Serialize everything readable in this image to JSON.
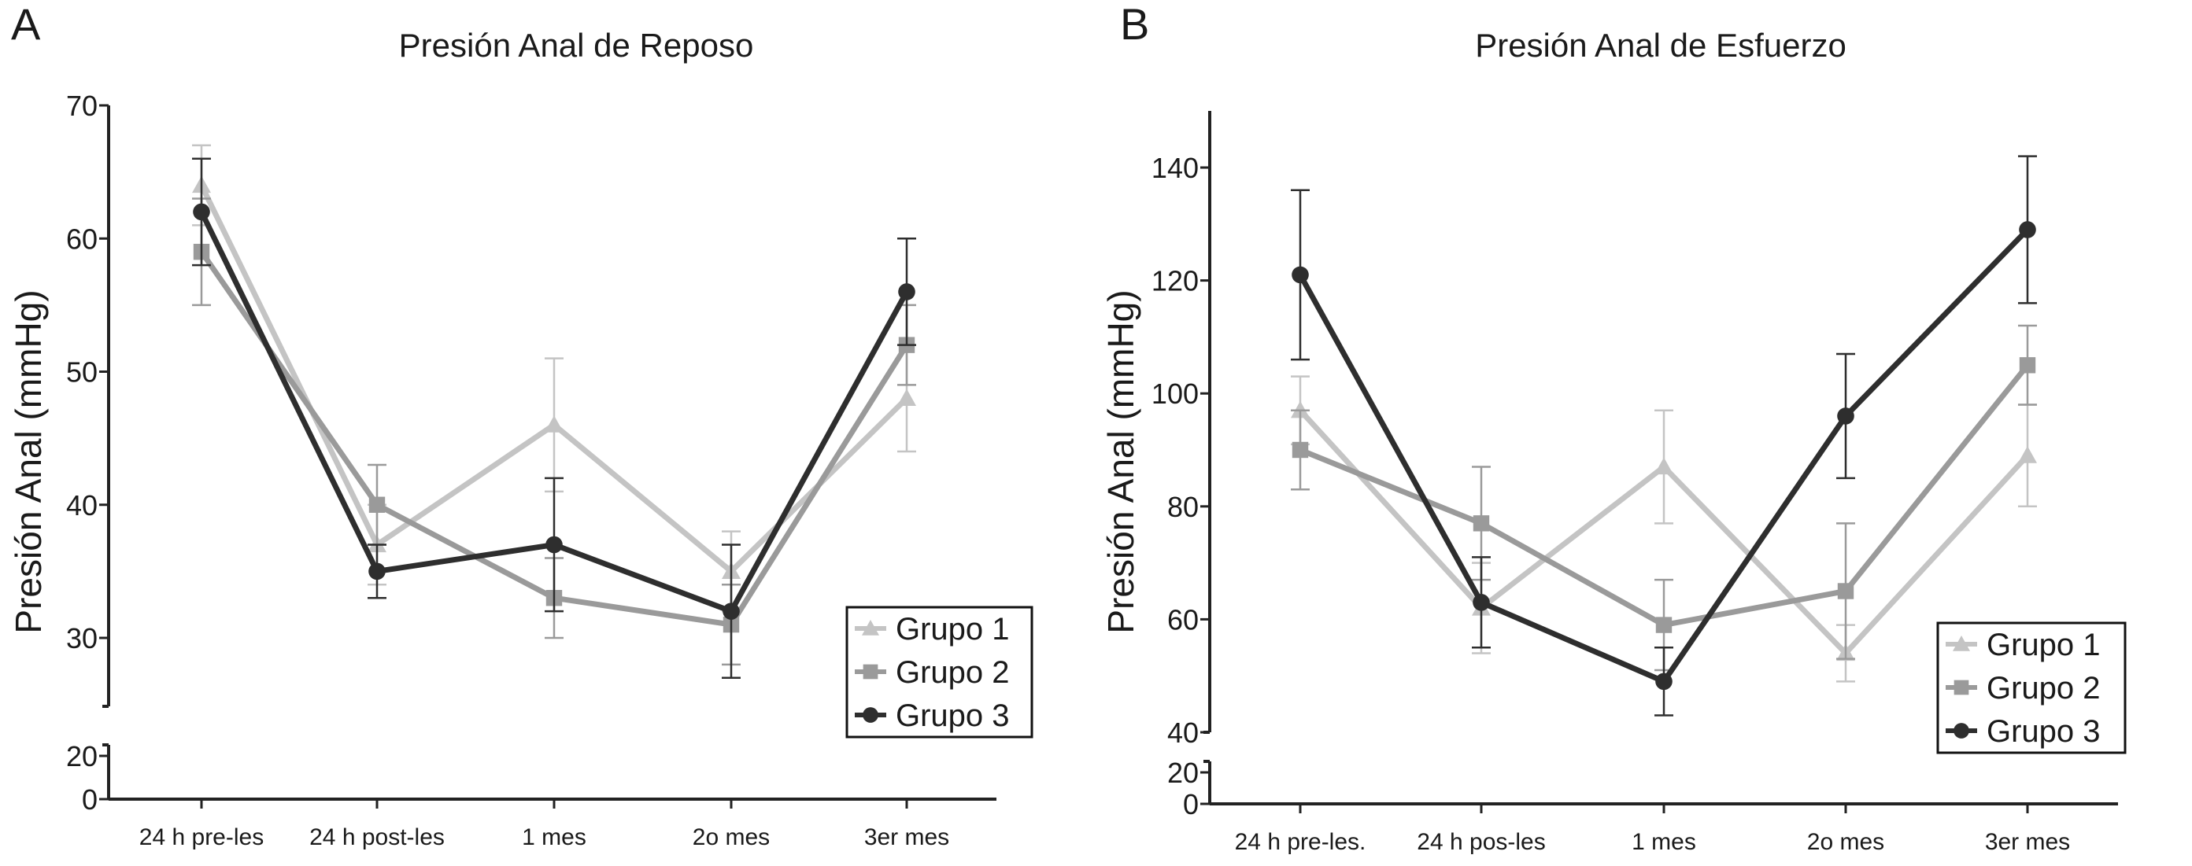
{
  "colors": {
    "Grupo 1": "#c4c4c4",
    "Grupo 2": "#9a9a9a",
    "Grupo 3": "#2e2e2e"
  },
  "chart_data": [
    {
      "panel": "A",
      "type": "line",
      "title": "Presión Anal de Reposo",
      "xlabel": "",
      "ylabel": "Presión Anal (mmHg)",
      "categories": [
        "24 h pre-les",
        "24 h post-les",
        "1  mes",
        "2o  mes",
        "3er  mes"
      ],
      "yticks": [
        0,
        20,
        30,
        40,
        50,
        60,
        70
      ],
      "ylim": [
        0,
        70
      ],
      "axis_break": [
        20,
        25
      ],
      "legend": "bottom-right",
      "grid": false,
      "series": [
        {
          "name": "Grupo 1",
          "marker": "triangle",
          "values": [
            64,
            37,
            46,
            35,
            48
          ],
          "err_low": [
            61,
            34,
            41,
            32,
            44
          ],
          "err_high": [
            67,
            40,
            51,
            38,
            52
          ]
        },
        {
          "name": "Grupo 2",
          "marker": "square",
          "values": [
            59,
            40,
            33,
            31,
            52
          ],
          "err_low": [
            55,
            37,
            30,
            28,
            49
          ],
          "err_high": [
            63,
            43,
            36,
            34,
            55
          ]
        },
        {
          "name": "Grupo 3",
          "marker": "circle",
          "values": [
            62,
            35,
            37,
            32,
            56
          ],
          "err_low": [
            58,
            33,
            32,
            27,
            52
          ],
          "err_high": [
            66,
            37,
            42,
            37,
            60
          ]
        }
      ]
    },
    {
      "panel": "B",
      "type": "line",
      "title": "Presión Anal de Esfuerzo",
      "xlabel": "",
      "ylabel": "Presión Anal (mmHg)",
      "categories": [
        "24 h pre-les.",
        "24 h pos-les",
        "1 mes",
        "2o  mes",
        "3er  mes"
      ],
      "yticks": [
        0,
        20,
        40,
        60,
        80,
        100,
        120,
        140
      ],
      "ylim": [
        0,
        150
      ],
      "axis_break": [
        20,
        40
      ],
      "legend": "bottom-right",
      "grid": false,
      "series": [
        {
          "name": "Grupo 1",
          "marker": "triangle",
          "values": [
            97,
            62,
            87,
            54,
            89
          ],
          "err_low": [
            91,
            54,
            77,
            49,
            80
          ],
          "err_high": [
            103,
            70,
            97,
            59,
            98
          ]
        },
        {
          "name": "Grupo 2",
          "marker": "square",
          "values": [
            90,
            77,
            59,
            65,
            105
          ],
          "err_low": [
            83,
            67,
            51,
            53,
            98
          ],
          "err_high": [
            97,
            87,
            67,
            77,
            112
          ]
        },
        {
          "name": "Grupo 3",
          "marker": "circle",
          "values": [
            121,
            63,
            49,
            96,
            129
          ],
          "err_low": [
            106,
            55,
            43,
            85,
            116
          ],
          "err_high": [
            136,
            71,
            55,
            107,
            142
          ]
        }
      ]
    }
  ]
}
